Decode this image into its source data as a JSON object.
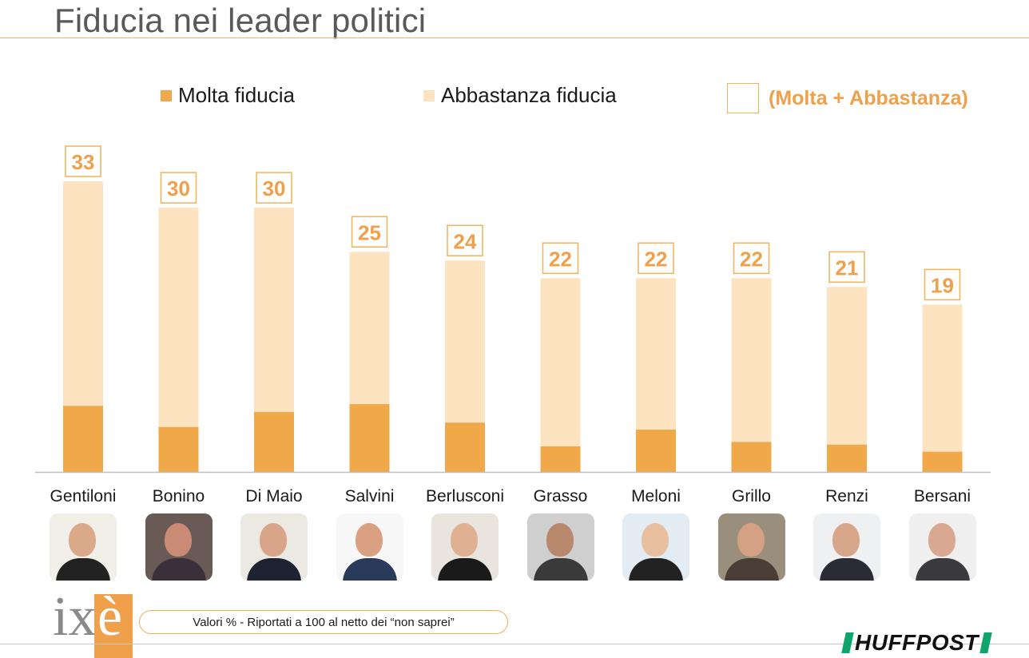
{
  "title": "Fiducia nei leader politici",
  "legend": {
    "molta": "Molta fiducia",
    "abbastanza": "Abbastanza fiducia",
    "total": "(Molta + Abbastanza)"
  },
  "colors": {
    "molta": "#f0a848",
    "abbastanza": "#fde3c0",
    "accent": "#f0a04b"
  },
  "chart_data": {
    "type": "bar",
    "stacked": true,
    "categories": [
      "Gentiloni",
      "Bonino",
      "Di Maio",
      "Salvini",
      "Berlusconi",
      "Grasso",
      "Meloni",
      "Grillo",
      "Renzi",
      "Bersani"
    ],
    "series": [
      {
        "name": "Molta fiducia",
        "values": [
          7.5,
          5.1,
          6.8,
          7.7,
          5.6,
          2.9,
          4.8,
          3.4,
          3.1,
          2.3
        ]
      },
      {
        "name": "Abbastanza fiducia",
        "values": [
          25.5,
          24.9,
          23.2,
          17.3,
          18.4,
          19.1,
          17.2,
          18.6,
          17.9,
          16.7
        ]
      }
    ],
    "totals": [
      "33",
      "30",
      "30",
      "25",
      "24",
      "22",
      "22",
      "22",
      "21",
      "19"
    ],
    "ylim": [
      0,
      33
    ],
    "grid": false,
    "legend_position": "top"
  },
  "note": "Valori % - Riportati a 100 al netto dei “non saprei”",
  "logos": {
    "ixe_ix": "ix",
    "ixe_e": "è",
    "huffpost": "HUFFPOST"
  }
}
